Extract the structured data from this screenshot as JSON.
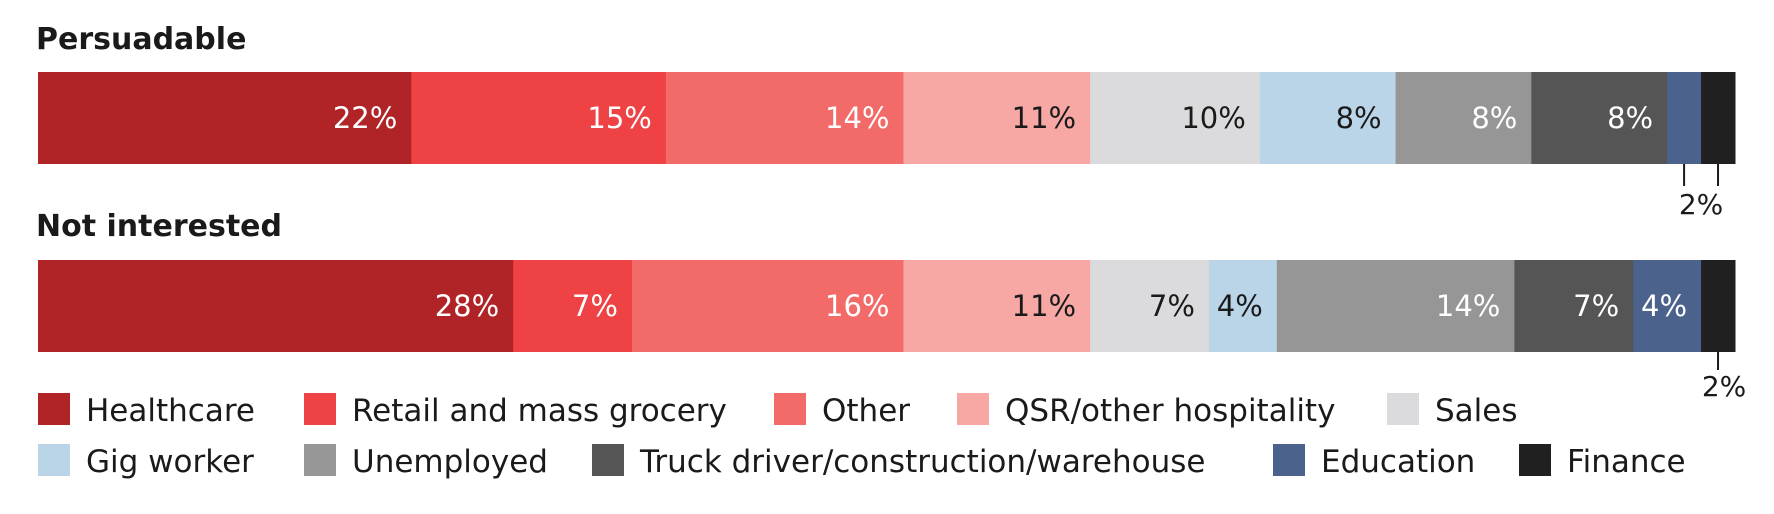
{
  "chart_data": {
    "type": "bar",
    "orientation": "horizontal-stacked-100",
    "categories": [
      "Healthcare",
      "Retail and mass grocery",
      "Other",
      "QSR/other hospitality",
      "Sales",
      "Gig worker",
      "Unemployed",
      "Truck driver/construction/warehouse",
      "Education",
      "Finance"
    ],
    "colors": [
      "#b02427",
      "#ee4244",
      "#f26b68",
      "#f7a8a4",
      "#dbdbdd",
      "#bad5e8",
      "#969696",
      "#555555",
      "#4b628c",
      "#202020"
    ],
    "label_colors": [
      "#ffffff",
      "#ffffff",
      "#ffffff",
      "#1a1a1a",
      "#1a1a1a",
      "#1a1a1a",
      "#ffffff",
      "#ffffff",
      "#ffffff",
      "#ffffff"
    ],
    "groups": [
      {
        "name": "Persuadable",
        "values": [
          22,
          15,
          14,
          11,
          10,
          8,
          8,
          8,
          2,
          2
        ],
        "labels": [
          "22%",
          "15%",
          "14%",
          "11%",
          "10%",
          "8%",
          "8%",
          "8%",
          "",
          ""
        ],
        "callout": "2%"
      },
      {
        "name": "Not interested",
        "values": [
          28,
          7,
          16,
          11,
          7,
          4,
          14,
          7,
          4,
          2
        ],
        "labels": [
          "28%",
          "7%",
          "16%",
          "11%",
          "7%",
          "4%",
          "14%",
          "7%",
          "4%",
          ""
        ],
        "callout": "2%"
      }
    ],
    "legend": "bottom"
  }
}
